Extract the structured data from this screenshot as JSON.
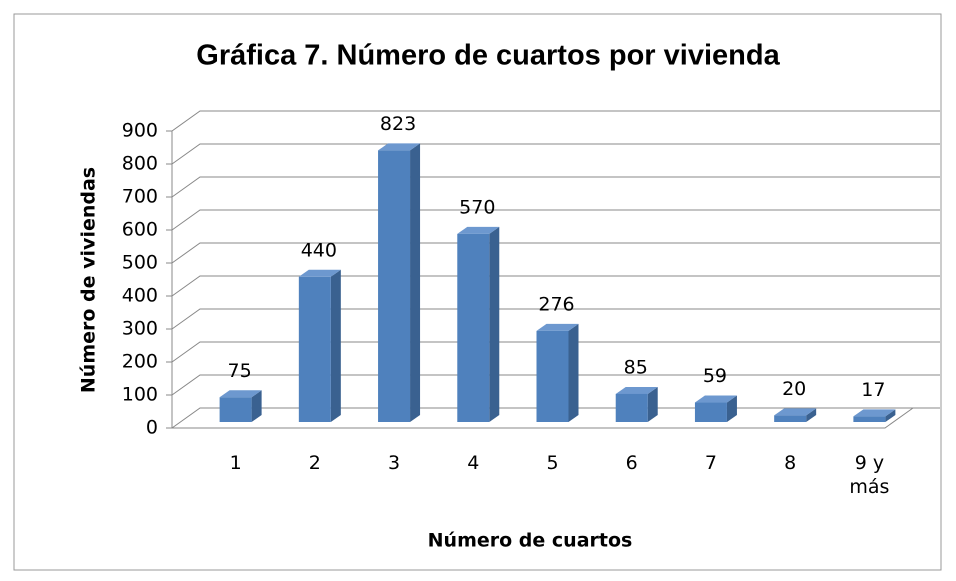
{
  "chart_data": {
    "type": "bar3d",
    "title": "Gráfica 7. Número de cuartos por vivienda",
    "x_label": "Número de cuartos",
    "y_label": "Número de viviendas",
    "categories": [
      "1",
      "2",
      "3",
      "4",
      "5",
      "6",
      "7",
      "8",
      "9 y más"
    ],
    "values": [
      75,
      440,
      823,
      570,
      276,
      85,
      59,
      20,
      17
    ],
    "color": "#4f81bd",
    "ylim": [
      0,
      900
    ],
    "yticks": [
      0,
      100,
      200,
      300,
      400,
      500,
      600,
      700,
      800,
      900
    ],
    "grid": true
  }
}
